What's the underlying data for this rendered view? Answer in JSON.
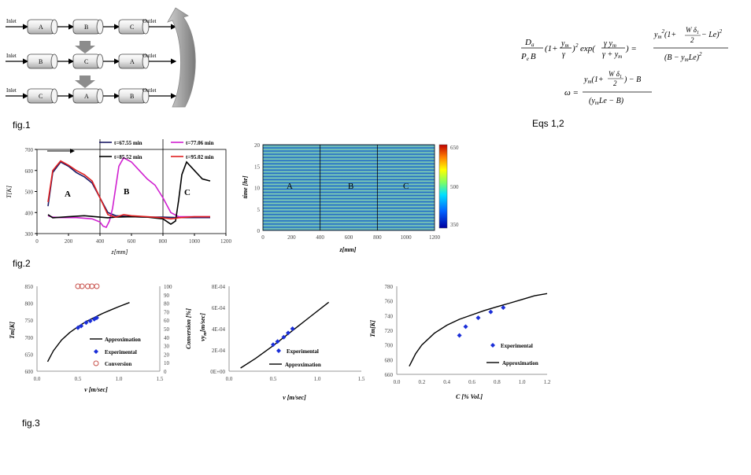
{
  "fig1": {
    "caption": "fig.1",
    "rows": [
      {
        "inlet": "Inlet",
        "outlet": "Outlet",
        "cells": [
          "A",
          "B",
          "C"
        ]
      },
      {
        "inlet": "Inlet",
        "outlet": "Outlet",
        "cells": [
          "B",
          "C",
          "A"
        ]
      },
      {
        "inlet": "Inlet",
        "outlet": "Outlet",
        "cells": [
          "C",
          "A",
          "B"
        ]
      }
    ]
  },
  "equations": {
    "caption": "Eqs 1,2",
    "eq1": {
      "lhs_num": "D",
      "lhs_num_sub": "a",
      "lhs_den": "P",
      "lhs_den_sub": "e",
      "lhs_den2": "B",
      "lhs_paren": "(1+",
      "lhs_paren_num": "y",
      "lhs_paren_num_sub": "m",
      "lhs_paren_den": "γ",
      "lhs_paren_close": ")",
      "lhs_power": "2",
      "exp_label": "exp(",
      "exp_num": "γ y",
      "exp_num_sub": "m",
      "exp_den": "γ + y",
      "exp_den_sub": "m",
      "exp_close": ") =",
      "rhs_num": "y",
      "rhs_num_sub": "m",
      "rhs_num_sup": "2",
      "rhs_num_rest": "(1+",
      "rhs_frac_num": "W δ",
      "rhs_frac_num_sub": "1",
      "rhs_frac_den": "2",
      "rhs_num_tail": "− Le)",
      "rhs_num_tail_sup": "2",
      "rhs_den": "(B − y",
      "rhs_den_sub": "m",
      "rhs_den_tail": "Le)",
      "rhs_den_sup": "2"
    },
    "eq2": {
      "lhs": "ω =",
      "num": "y",
      "num_sub": "m",
      "num_rest": "(1+",
      "frac_num": "W δ",
      "frac_num_sub": "1",
      "frac_den": "2",
      "num_tail": ") − B",
      "den": "(y",
      "den_sub": "m",
      "den_tail": "Le − B)"
    }
  },
  "fig2": {
    "caption": "fig.2",
    "line_chart": {
      "ylabel": "T[K]",
      "xlabel": "z[mm]",
      "region_labels": [
        "A",
        "B",
        "C"
      ],
      "legend": [
        "t=67.55 min",
        "t=77.06 min",
        "t=85.52 min",
        "t=95.02 min"
      ]
    },
    "heatmap": {
      "ylabel": "time [hr]",
      "xlabel": "z[mm]",
      "region_labels": [
        "A",
        "B",
        "C"
      ],
      "colorbar_ticks": [
        "650",
        "500",
        "350"
      ]
    }
  },
  "fig3": {
    "caption": "fig.3",
    "panel1": {
      "ylabel_left": "Tm[K]",
      "ylabel_right": "Conversion [%]",
      "xlabel": "v [m/sec]",
      "legend": [
        "Approximation",
        "Experimental",
        "Conversion"
      ]
    },
    "panel2": {
      "ylabel": "vy",
      "ylabel_sub": "m",
      "ylabel_unit": "[m/sec]",
      "xlabel": "v [m/sec]",
      "legend": [
        "Experimental",
        "Approximation"
      ]
    },
    "panel3": {
      "ylabel": "Tm[K]",
      "xlabel": "C [% Vol.]",
      "legend": [
        "Experimental",
        "Approximation"
      ]
    }
  },
  "chart_data": [
    {
      "type": "line",
      "x_name": "z [mm]",
      "xlim": [
        0,
        1200
      ],
      "ylim": [
        300,
        700
      ],
      "xticks": [
        0,
        200,
        400,
        600,
        800,
        1000,
        1200
      ],
      "yticks": [
        300,
        400,
        500,
        600,
        700
      ],
      "region_boundaries": [
        400,
        800
      ],
      "series": [
        {
          "name": "t=67.55 min",
          "color": "#1a1a66",
          "x": [
            70,
            100,
            150,
            200,
            250,
            300,
            350,
            400,
            450,
            500,
            600,
            700,
            800,
            900,
            1000,
            1100
          ],
          "y": [
            430,
            590,
            640,
            620,
            590,
            570,
            540,
            470,
            400,
            385,
            380,
            378,
            378,
            376,
            376,
            376
          ]
        },
        {
          "name": "t=77.06 min",
          "color": "#d020d0",
          "x": [
            70,
            100,
            150,
            250,
            350,
            400,
            420,
            440,
            460,
            480,
            500,
            520,
            550,
            600,
            650,
            700,
            750,
            800,
            850,
            900,
            1000,
            1100
          ],
          "y": [
            385,
            378,
            376,
            376,
            370,
            355,
            335,
            330,
            360,
            420,
            520,
            620,
            660,
            640,
            600,
            560,
            530,
            470,
            400,
            380,
            380,
            380
          ]
        },
        {
          "name": "t=85.52 min",
          "color": "#000000",
          "x": [
            70,
            100,
            200,
            300,
            400,
            450,
            500,
            600,
            700,
            800,
            850,
            880,
            900,
            920,
            950,
            1000,
            1050,
            1100
          ],
          "y": [
            390,
            375,
            380,
            385,
            378,
            375,
            378,
            380,
            378,
            370,
            345,
            360,
            460,
            580,
            640,
            600,
            560,
            550
          ]
        },
        {
          "name": "t=95.02 min",
          "color": "#e02020",
          "x": [
            70,
            100,
            150,
            200,
            250,
            300,
            350,
            400,
            450,
            500,
            550,
            600,
            700,
            800,
            850,
            900,
            1000,
            1100
          ],
          "y": [
            450,
            600,
            645,
            625,
            600,
            580,
            550,
            470,
            390,
            378,
            390,
            385,
            380,
            375,
            370,
            375,
            380,
            380
          ]
        }
      ]
    },
    {
      "type": "heatmap",
      "xlim": [
        0,
        1200
      ],
      "ylim": [
        0,
        20
      ],
      "xticks": [
        0,
        200,
        400,
        600,
        800,
        1000,
        1200
      ],
      "yticks": [
        0,
        5,
        10,
        15,
        20
      ],
      "color_range": [
        350,
        650
      ],
      "region_boundaries": [
        400,
        800
      ]
    },
    {
      "type": "scatter",
      "xlim": [
        0,
        1.5
      ],
      "ylim": [
        600,
        850
      ],
      "y2lim": [
        0,
        100
      ],
      "xticks": [
        0.0,
        0.5,
        1.0,
        1.5
      ],
      "yticks": [
        600,
        650,
        700,
        750,
        800,
        850
      ],
      "y2ticks": [
        0,
        10,
        20,
        30,
        40,
        50,
        60,
        70,
        80,
        90,
        100
      ],
      "series": [
        {
          "name": "Approximation",
          "style": "line",
          "x": [
            0.13,
            0.2,
            0.3,
            0.4,
            0.5,
            0.6,
            0.7,
            0.8,
            0.9,
            1.0,
            1.13
          ],
          "y": [
            628,
            660,
            692,
            714,
            731,
            746,
            758,
            770,
            780,
            790,
            802
          ]
        },
        {
          "name": "Experimental",
          "style": "diamond",
          "x": [
            0.5,
            0.54,
            0.6,
            0.65,
            0.7,
            0.73
          ],
          "y": [
            728,
            733,
            743,
            748,
            753,
            757
          ]
        },
        {
          "name": "Conversion",
          "style": "circle",
          "axis": "right",
          "x": [
            0.5,
            0.55,
            0.62,
            0.67,
            0.73
          ],
          "y": [
            100,
            100,
            100,
            100,
            100
          ]
        }
      ]
    },
    {
      "type": "scatter",
      "xlim": [
        0,
        1.5
      ],
      "ylim": [
        0,
        0.0008
      ],
      "xticks": [
        0.0,
        0.5,
        1.0,
        1.5
      ],
      "yticks": [
        "0E+00",
        "2E-04",
        "4E-04",
        "6E-04",
        "8E-04"
      ],
      "series": [
        {
          "name": "Experimental",
          "style": "diamond",
          "x": [
            0.5,
            0.55,
            0.62,
            0.67,
            0.72
          ],
          "y": [
            0.00025,
            0.00028,
            0.00032,
            0.00036,
            0.0004
          ]
        },
        {
          "name": "Approximation",
          "style": "line",
          "x": [
            0.13,
            0.3,
            0.5,
            0.7,
            0.9,
            1.13
          ],
          "y": [
            3e-05,
            0.00012,
            0.00024,
            0.00037,
            0.0005,
            0.00065
          ]
        }
      ]
    },
    {
      "type": "scatter",
      "xlim": [
        0,
        1.2
      ],
      "ylim": [
        660,
        780
      ],
      "xticks": [
        0.0,
        0.2,
        0.4,
        0.6,
        0.8,
        1.0,
        1.2
      ],
      "yticks": [
        660,
        680,
        700,
        720,
        740,
        760,
        780
      ],
      "series": [
        {
          "name": "Experimental",
          "style": "diamond",
          "x": [
            0.5,
            0.55,
            0.65,
            0.75,
            0.85
          ],
          "y": [
            713,
            725,
            737,
            745,
            751
          ]
        },
        {
          "name": "Approximation",
          "style": "line",
          "x": [
            0.1,
            0.15,
            0.2,
            0.3,
            0.4,
            0.5,
            0.6,
            0.7,
            0.8,
            0.9,
            1.0,
            1.1,
            1.2
          ],
          "y": [
            671,
            688,
            700,
            716,
            727,
            735,
            741,
            747,
            752,
            757,
            762,
            767,
            770
          ]
        }
      ]
    }
  ]
}
